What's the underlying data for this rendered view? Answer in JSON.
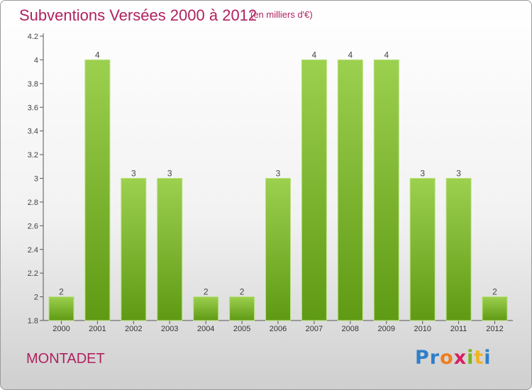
{
  "header": {
    "title": "Subventions Versées 2000 à 2012",
    "subtitle": "(en milliers d'€)"
  },
  "footer": {
    "city": "MONTADET",
    "logo_letters": [
      "P",
      "r",
      "o",
      "x",
      "i",
      "t",
      "i"
    ],
    "logo_colors": [
      "#2f7fc8",
      "#2f7fc8",
      "#f07d1e",
      "#d81e62",
      "#7ab51d",
      "#f0b323",
      "#2f7fc8"
    ]
  },
  "colors": {
    "bar_light": "#9cd04f",
    "bar_dark": "#5f9a14",
    "axis": "#555555",
    "title": "#b0215f"
  },
  "chart_data": {
    "type": "bar",
    "categories": [
      "2000",
      "2001",
      "2002",
      "2003",
      "2004",
      "2005",
      "2006",
      "2007",
      "2008",
      "2009",
      "2010",
      "2011",
      "2012"
    ],
    "values": [
      2,
      4,
      3,
      3,
      2,
      2,
      3,
      4,
      4,
      4,
      3,
      3,
      2
    ],
    "value_labels": [
      "2",
      "4",
      "3",
      "3",
      "2",
      "2",
      "3",
      "4",
      "4",
      "4",
      "3",
      "3",
      "2"
    ],
    "ylim": [
      1.8,
      4.2
    ],
    "yticks": [
      1.8,
      2,
      2.2,
      2.4,
      2.6,
      2.8,
      3,
      3.2,
      3.4,
      3.6,
      3.8,
      4,
      4.2
    ],
    "ytick_labels": [
      "1.8",
      "2",
      "2.2",
      "2.4",
      "2.6",
      "2.8",
      "3",
      "3.2",
      "3.4",
      "3.6",
      "3.8",
      "4",
      "4.2"
    ],
    "grid": false
  }
}
